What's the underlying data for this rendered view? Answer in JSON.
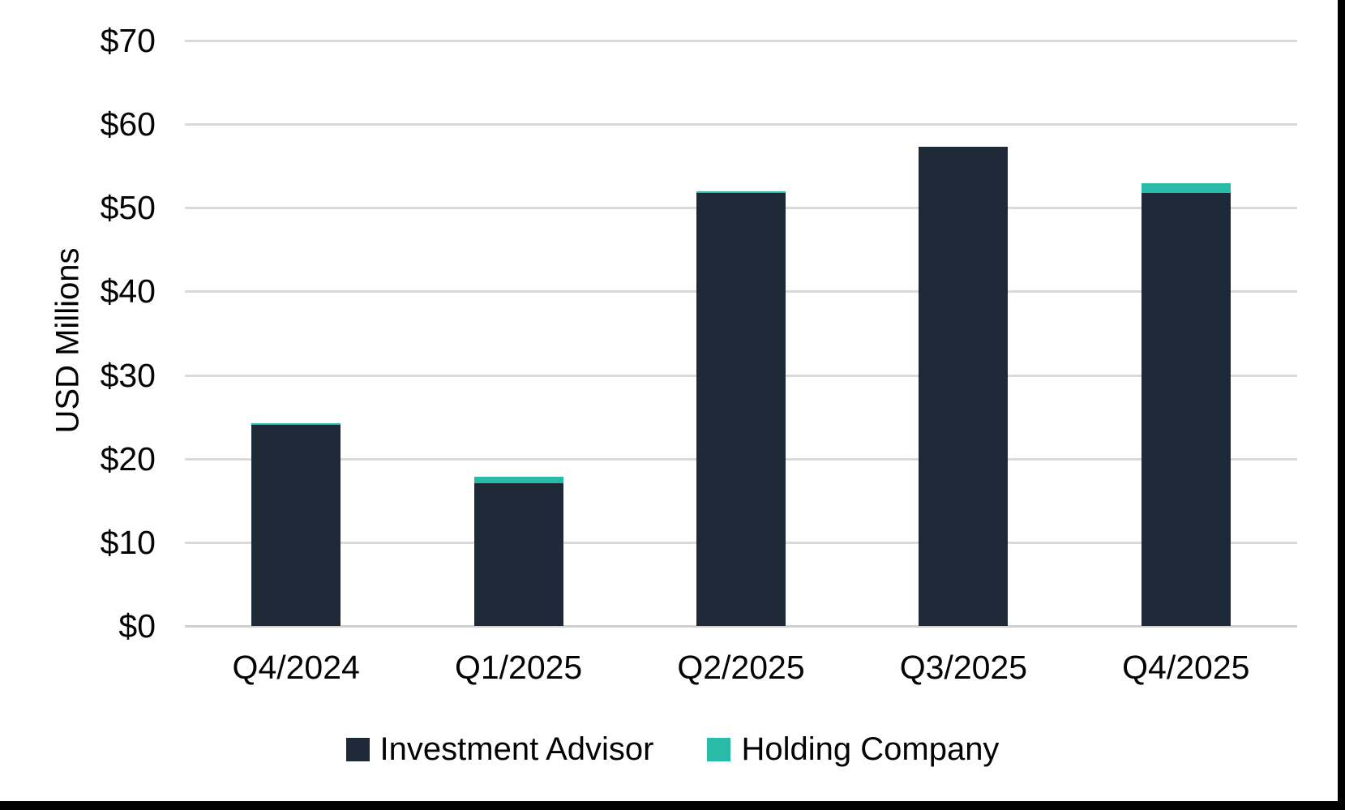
{
  "chart_data": {
    "type": "bar",
    "stacked": true,
    "title": "",
    "xlabel": "",
    "ylabel": "USD Millions",
    "categories": [
      "Q4/2024",
      "Q1/2025",
      "Q2/2025",
      "Q3/2025",
      "Q4/2025"
    ],
    "series": [
      {
        "name": "Investment Advisor",
        "color": "#1e2938",
        "values": [
          24.0,
          17.1,
          51.8,
          57.3,
          51.8
        ]
      },
      {
        "name": "Holding Company",
        "color": "#2abaa8",
        "values": [
          0.2,
          0.8,
          0.2,
          0.0,
          1.2
        ]
      }
    ],
    "ylim": [
      0,
      70
    ],
    "y_tick_interval": 10,
    "y_tick_labels": [
      "$0",
      "$10",
      "$20",
      "$30",
      "$40",
      "$50",
      "$60",
      "$70"
    ],
    "grid": true,
    "gridline_color": "#dadada",
    "legend_position": "bottom"
  },
  "window": {
    "right_edge_color": "#000000",
    "bottom_edge_color": "#000000"
  }
}
